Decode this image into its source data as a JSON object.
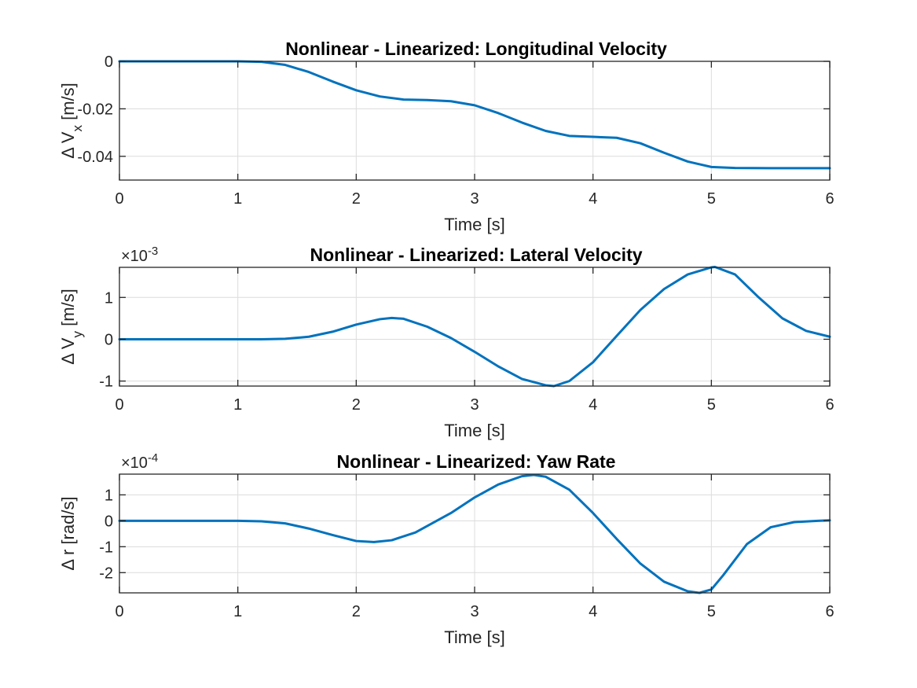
{
  "colors": {
    "line": "#0072BD",
    "background": "#ffffff"
  },
  "chart_data": [
    {
      "type": "line",
      "title": "Nonlinear - Linearized: Longitudinal Velocity",
      "xlabel": "Time [s]",
      "ylabel": "Δ V_x [m/s]",
      "ylabel_base": "Δ V",
      "ylabel_sub": "x",
      "ylabel_unit": " [m/s]",
      "exponent_label": "",
      "xlim": [
        0,
        6
      ],
      "ylim": [
        -0.05,
        0
      ],
      "xticks": [
        0,
        1,
        2,
        3,
        4,
        5,
        6
      ],
      "xtick_labels": [
        "0",
        "1",
        "2",
        "3",
        "4",
        "5",
        "6"
      ],
      "yticks": [
        -0.04,
        -0.02,
        0
      ],
      "ytick_labels": [
        "-0.04",
        "-0.02",
        "0"
      ],
      "grid": true,
      "series": [
        {
          "x": [
            0,
            0.5,
            1.0,
            1.2,
            1.4,
            1.6,
            1.8,
            2.0,
            2.2,
            2.4,
            2.6,
            2.8,
            3.0,
            3.2,
            3.4,
            3.6,
            3.8,
            4.0,
            4.2,
            4.4,
            4.6,
            4.8,
            5.0,
            5.2,
            5.5,
            6.0
          ],
          "y": [
            0,
            0,
            0,
            -0.0002,
            -0.0015,
            -0.0045,
            -0.0085,
            -0.0122,
            -0.0148,
            -0.0161,
            -0.0163,
            -0.0168,
            -0.0185,
            -0.0218,
            -0.0258,
            -0.0293,
            -0.0314,
            -0.0318,
            -0.0322,
            -0.0345,
            -0.0385,
            -0.0422,
            -0.0445,
            -0.0449,
            -0.045,
            -0.045
          ]
        }
      ]
    },
    {
      "type": "line",
      "title": "Nonlinear - Linearized: Lateral Velocity",
      "xlabel": "Time [s]",
      "ylabel": "Δ V_y [m/s]",
      "ylabel_base": "Δ V",
      "ylabel_sub": "y",
      "ylabel_unit": " [m/s]",
      "exponent_label": "×10^-3",
      "exponent_base": "×10",
      "exponent_power": "-3",
      "xlim": [
        0,
        6
      ],
      "ylim": [
        -1.12,
        1.72
      ],
      "xticks": [
        0,
        1,
        2,
        3,
        4,
        5,
        6
      ],
      "xtick_labels": [
        "0",
        "1",
        "2",
        "3",
        "4",
        "5",
        "6"
      ],
      "yticks": [
        -1,
        0,
        1
      ],
      "ytick_labels": [
        "-1",
        "0",
        "1"
      ],
      "grid": true,
      "series": [
        {
          "x": [
            0,
            0.5,
            1.0,
            1.2,
            1.4,
            1.6,
            1.8,
            2.0,
            2.2,
            2.3,
            2.4,
            2.6,
            2.8,
            3.0,
            3.2,
            3.4,
            3.6,
            3.67,
            3.8,
            4.0,
            4.2,
            4.4,
            4.6,
            4.8,
            5.0,
            5.03,
            5.2,
            5.4,
            5.6,
            5.8,
            6.0
          ],
          "y": [
            0,
            0,
            0,
            0,
            0.01,
            0.06,
            0.18,
            0.35,
            0.48,
            0.51,
            0.49,
            0.3,
            0.03,
            -0.3,
            -0.65,
            -0.95,
            -1.1,
            -1.12,
            -1.0,
            -0.55,
            0.08,
            0.7,
            1.2,
            1.55,
            1.72,
            1.73,
            1.55,
            1.0,
            0.5,
            0.2,
            0.06
          ]
        }
      ]
    },
    {
      "type": "line",
      "title": "Nonlinear - Linearized: Yaw Rate",
      "xlabel": "Time [s]",
      "ylabel": "Δ r [rad/s]",
      "ylabel_base": "Δ r",
      "ylabel_sub": "",
      "ylabel_unit": " [rad/s]",
      "exponent_label": "×10^-4",
      "exponent_base": "×10",
      "exponent_power": "-4",
      "xlim": [
        0,
        6
      ],
      "ylim": [
        -2.78,
        1.8
      ],
      "xticks": [
        0,
        1,
        2,
        3,
        4,
        5,
        6
      ],
      "xtick_labels": [
        "0",
        "1",
        "2",
        "3",
        "4",
        "5",
        "6"
      ],
      "yticks": [
        -2,
        -1,
        0,
        1
      ],
      "ytick_labels": [
        "-2",
        "-1",
        "0",
        "1"
      ],
      "grid": true,
      "series": [
        {
          "x": [
            0,
            0.5,
            1.0,
            1.2,
            1.4,
            1.6,
            1.8,
            2.0,
            2.15,
            2.3,
            2.5,
            2.8,
            3.0,
            3.2,
            3.4,
            3.5,
            3.6,
            3.8,
            4.0,
            4.2,
            4.4,
            4.6,
            4.8,
            4.9,
            5.0,
            5.1,
            5.3,
            5.5,
            5.7,
            5.9,
            6.0
          ],
          "y": [
            0,
            0,
            0,
            -0.02,
            -0.1,
            -0.3,
            -0.55,
            -0.78,
            -0.82,
            -0.75,
            -0.45,
            0.3,
            0.9,
            1.4,
            1.72,
            1.77,
            1.7,
            1.2,
            0.3,
            -0.7,
            -1.65,
            -2.35,
            -2.72,
            -2.78,
            -2.65,
            -2.1,
            -0.9,
            -0.25,
            -0.05,
            0.0,
            0.02
          ]
        }
      ]
    }
  ]
}
